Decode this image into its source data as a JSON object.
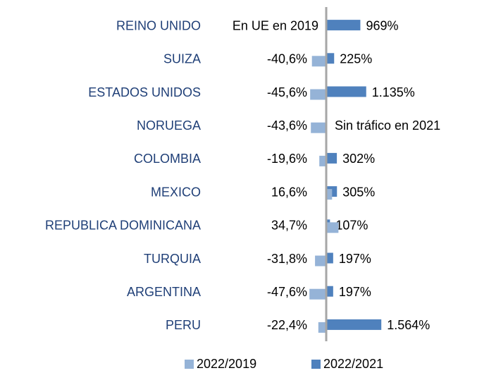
{
  "chart_data": {
    "type": "bar",
    "orientation": "horizontal",
    "categories": [
      "REINO UNIDO",
      "SUIZA",
      "ESTADOS UNIDOS",
      "NORUEGA",
      "COLOMBIA",
      "MEXICO",
      "REPUBLICA DOMINICANA",
      "TURQUIA",
      "ARGENTINA",
      "PERU"
    ],
    "series": [
      {
        "name": "2022/2019",
        "color": "#95b3d7",
        "axis": "x",
        "values": [
          null,
          -40.6,
          -45.6,
          -43.6,
          -19.6,
          16.6,
          34.7,
          -31.8,
          -47.6,
          -22.4
        ],
        "value_labels": [
          "En UE en 2019",
          "-40,6%",
          "-45,6%",
          "-43,6%",
          "-19,6%",
          "16,6%",
          "34,7%",
          "-31,8%",
          "-47,6%",
          "-22,4%"
        ]
      },
      {
        "name": "2022/2021",
        "color": "#4f81bd",
        "axis": "x2",
        "values": [
          969,
          225,
          1135,
          null,
          302,
          305,
          107,
          197,
          197,
          1564
        ],
        "value_labels": [
          "969%",
          "225%",
          "1.135%",
          "Sin tráfico en 2021",
          "302%",
          "305%",
          "107%",
          "197%",
          "197%",
          "1.564%"
        ]
      }
    ],
    "xlim": [
      -100,
      100
    ],
    "x2lim": [
      -1000,
      1000
    ],
    "legend": "bottom"
  }
}
